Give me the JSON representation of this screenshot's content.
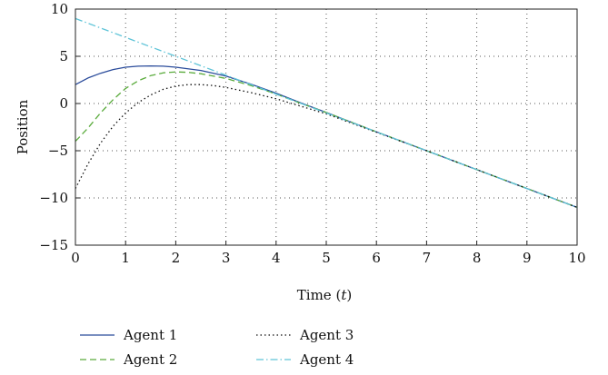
{
  "chart_data": {
    "type": "line",
    "title": "",
    "xlabel_prefix": "Time (",
    "xlabel_var": "t",
    "xlabel_suffix": ")",
    "ylabel": "Position",
    "xlim": [
      0,
      10
    ],
    "ylim": [
      -15,
      10
    ],
    "xticks": [
      0,
      1,
      2,
      3,
      4,
      5,
      6,
      7,
      8,
      9,
      10
    ],
    "yticks": [
      -15,
      -10,
      -5,
      0,
      5,
      10
    ],
    "xtick_labels": [
      "0",
      "1",
      "2",
      "3",
      "4",
      "5",
      "6",
      "7",
      "8",
      "9",
      "10"
    ],
    "ytick_labels": [
      "−15",
      "−10",
      "−5",
      "0",
      "5",
      "10"
    ],
    "grid": true,
    "legend_position": "bottom",
    "series": [
      {
        "name": "Agent 1",
        "color": "#2b4c9b",
        "dash": "solid",
        "x": [
          0,
          0.25,
          0.5,
          0.75,
          1,
          1.25,
          1.5,
          1.75,
          2,
          2.5,
          3,
          3.5,
          4,
          4.5,
          5,
          6,
          7,
          8,
          9,
          10
        ],
        "y": [
          2.0,
          2.7,
          3.2,
          3.6,
          3.85,
          3.95,
          3.98,
          3.95,
          3.85,
          3.5,
          2.9,
          2.05,
          1.1,
          0.05,
          -0.95,
          -3.0,
          -5.0,
          -7.0,
          -9.0,
          -11.0
        ]
      },
      {
        "name": "Agent 2",
        "color": "#5aab3c",
        "dash": "dashed",
        "x": [
          0,
          0.25,
          0.5,
          0.75,
          1,
          1.25,
          1.5,
          1.75,
          2,
          2.25,
          2.5,
          3,
          3.5,
          4,
          4.5,
          5,
          6,
          7,
          8,
          9,
          10
        ],
        "y": [
          -4.0,
          -2.6,
          -1.0,
          0.4,
          1.6,
          2.4,
          2.95,
          3.25,
          3.35,
          3.3,
          3.15,
          2.65,
          1.9,
          1.0,
          0.0,
          -0.95,
          -3.0,
          -5.0,
          -7.0,
          -9.0,
          -11.0
        ]
      },
      {
        "name": "Agent 3",
        "color": "#111111",
        "dash": "dotted",
        "x": [
          0,
          0.25,
          0.5,
          0.75,
          1,
          1.25,
          1.5,
          1.75,
          2,
          2.25,
          2.5,
          2.75,
          3,
          3.5,
          4,
          4.5,
          5,
          6,
          7,
          8,
          9,
          10
        ],
        "y": [
          -9.0,
          -6.4,
          -4.2,
          -2.4,
          -1.0,
          0.1,
          0.9,
          1.5,
          1.85,
          2.0,
          2.0,
          1.9,
          1.7,
          1.15,
          0.5,
          -0.3,
          -1.1,
          -3.05,
          -5.0,
          -7.0,
          -9.0,
          -11.0
        ]
      },
      {
        "name": "Agent 4",
        "color": "#5fc4d8",
        "dash": "dashdot",
        "x": [
          0,
          1,
          2,
          3,
          4,
          5,
          6,
          7,
          8,
          9,
          10
        ],
        "y": [
          9.0,
          7.0,
          5.0,
          3.0,
          1.0,
          -1.0,
          -3.0,
          -5.0,
          -7.0,
          -9.0,
          -11.0
        ]
      }
    ]
  }
}
